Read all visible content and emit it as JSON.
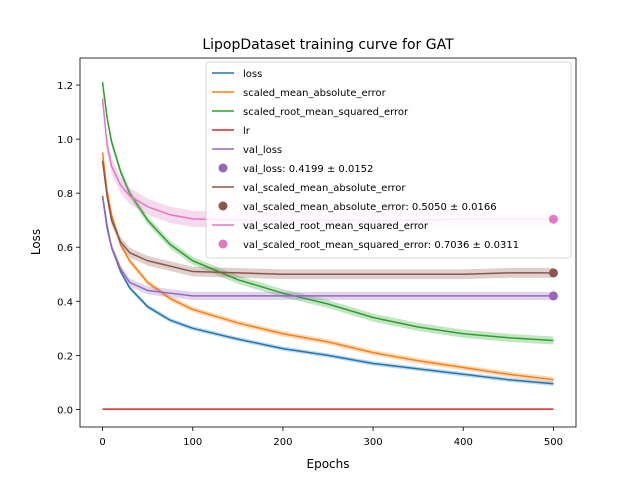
{
  "chart_data": {
    "type": "line",
    "title": "LipopDataset training curve for GAT",
    "xlabel": "Epochs",
    "ylabel": "Loss",
    "xlim": [
      -25,
      525
    ],
    "ylim": [
      -0.065,
      1.3
    ],
    "xticks": [
      0,
      100,
      200,
      300,
      400,
      500
    ],
    "yticks": [
      0.0,
      0.2,
      0.4,
      0.6,
      0.8,
      1.0,
      1.2
    ],
    "xtick_labels": [
      "0",
      "100",
      "200",
      "300",
      "400",
      "500"
    ],
    "ytick_labels": [
      "0.0",
      "0.2",
      "0.4",
      "0.6",
      "0.8",
      "1.0",
      "1.2"
    ],
    "grid": false,
    "legend_position": "top-right",
    "series": [
      {
        "name": "loss",
        "color": "#1f77b4",
        "band": 0.008,
        "x": [
          0,
          5,
          10,
          20,
          30,
          50,
          75,
          100,
          150,
          200,
          250,
          300,
          350,
          400,
          450,
          500
        ],
        "values": [
          0.79,
          0.68,
          0.6,
          0.51,
          0.45,
          0.38,
          0.33,
          0.3,
          0.26,
          0.225,
          0.2,
          0.17,
          0.15,
          0.13,
          0.11,
          0.095
        ]
      },
      {
        "name": "scaled_mean_absolute_error",
        "color": "#ff7f0e",
        "band": 0.01,
        "x": [
          0,
          5,
          10,
          20,
          30,
          50,
          75,
          100,
          150,
          200,
          250,
          300,
          350,
          400,
          450,
          500
        ],
        "values": [
          0.95,
          0.81,
          0.72,
          0.61,
          0.55,
          0.47,
          0.41,
          0.37,
          0.32,
          0.28,
          0.25,
          0.21,
          0.18,
          0.155,
          0.13,
          0.11
        ]
      },
      {
        "name": "scaled_root_mean_squared_error",
        "color": "#2ca02c",
        "band": 0.015,
        "x": [
          0,
          5,
          10,
          20,
          30,
          50,
          75,
          100,
          150,
          200,
          250,
          300,
          350,
          400,
          450,
          500
        ],
        "values": [
          1.21,
          1.08,
          0.99,
          0.88,
          0.8,
          0.7,
          0.61,
          0.55,
          0.48,
          0.43,
          0.39,
          0.34,
          0.305,
          0.28,
          0.265,
          0.255
        ]
      },
      {
        "name": "lr",
        "color": "#d62728",
        "band": 0,
        "x": [
          0,
          500
        ],
        "values": [
          0.001,
          0.001
        ]
      },
      {
        "name": "val_loss",
        "color": "#9467bd",
        "band": 0.015,
        "x": [
          0,
          5,
          10,
          20,
          30,
          50,
          75,
          100,
          150,
          200,
          250,
          300,
          350,
          400,
          450,
          500
        ],
        "values": [
          0.79,
          0.67,
          0.6,
          0.52,
          0.47,
          0.44,
          0.43,
          0.42,
          0.42,
          0.42,
          0.42,
          0.42,
          0.42,
          0.42,
          0.42,
          0.42
        ]
      },
      {
        "name": "val_scaled_mean_absolute_error",
        "color": "#8c564b",
        "band": 0.018,
        "x": [
          0,
          5,
          10,
          20,
          30,
          50,
          75,
          100,
          150,
          200,
          250,
          300,
          350,
          400,
          450,
          500
        ],
        "values": [
          0.92,
          0.79,
          0.7,
          0.62,
          0.58,
          0.55,
          0.53,
          0.51,
          0.505,
          0.5,
          0.5,
          0.5,
          0.5,
          0.5,
          0.505,
          0.505
        ]
      },
      {
        "name": "val_scaled_root_mean_squared_error",
        "color": "#e377c2",
        "band": 0.03,
        "x": [
          0,
          5,
          10,
          20,
          30,
          50,
          75,
          100,
          150,
          200,
          250,
          300,
          350,
          400,
          450,
          500
        ],
        "values": [
          1.15,
          0.98,
          0.9,
          0.83,
          0.79,
          0.75,
          0.72,
          0.705,
          0.7,
          0.7,
          0.7,
          0.7,
          0.7,
          0.705,
          0.705,
          0.705
        ]
      }
    ],
    "final_markers": [
      {
        "label": "val_loss: 0.4199 ± 0.0152",
        "color": "#9467bd",
        "x": 500,
        "value": 0.4199
      },
      {
        "label": "val_scaled_mean_absolute_error: 0.5050 ± 0.0166",
        "color": "#8c564b",
        "x": 500,
        "value": 0.505
      },
      {
        "label": "val_scaled_root_mean_squared_error: 0.7036 ± 0.0311",
        "color": "#e377c2",
        "x": 500,
        "value": 0.7036
      }
    ],
    "legend_order": [
      {
        "kind": "line",
        "ref": 0
      },
      {
        "kind": "line",
        "ref": 1
      },
      {
        "kind": "line",
        "ref": 2
      },
      {
        "kind": "line",
        "ref": 3
      },
      {
        "kind": "line",
        "ref": 4
      },
      {
        "kind": "marker",
        "ref": 0
      },
      {
        "kind": "line",
        "ref": 5
      },
      {
        "kind": "marker",
        "ref": 1
      },
      {
        "kind": "line",
        "ref": 6
      },
      {
        "kind": "marker",
        "ref": 2
      }
    ]
  }
}
